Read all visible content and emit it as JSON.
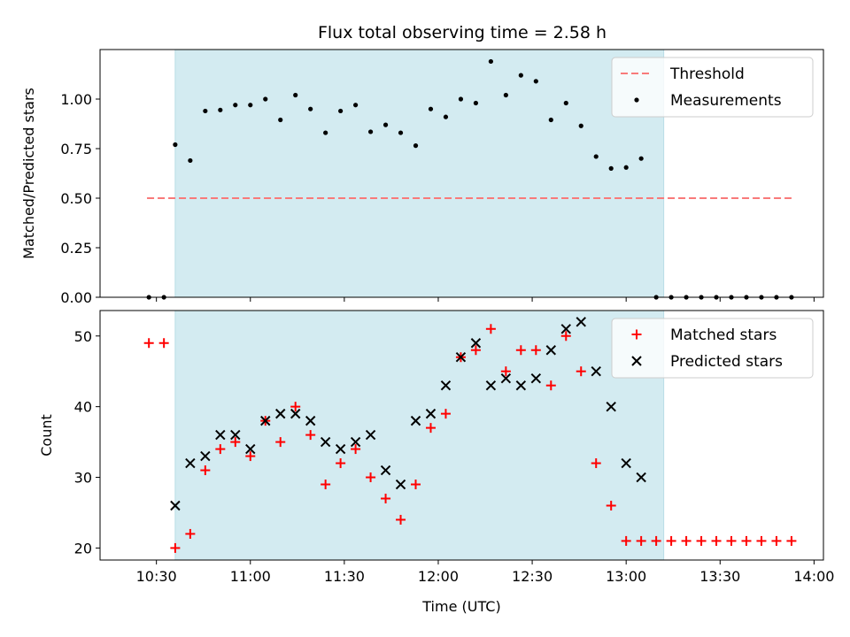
{
  "chart_data": [
    {
      "type": "scatter",
      "title": "Flux total observing time = 2.58 h",
      "ylabel": "Matched/Predicted stars",
      "ylim": [
        0,
        1.25
      ],
      "yticks": [
        "0.00",
        "0.25",
        "0.50",
        "0.75",
        "1.00"
      ],
      "yticks_values": [
        0,
        0.25,
        0.5,
        0.75,
        1.0
      ],
      "xlim": [
        10.2,
        14.05
      ],
      "shaded_region": [
        10.6,
        13.2
      ],
      "shade_color": "#d3ebf1",
      "legend_position": "top-right",
      "threshold": {
        "name": "Threshold",
        "value": 0.5,
        "x_range": [
          10.45,
          13.88
        ],
        "color": "#f87a7a"
      },
      "series": [
        {
          "name": "Measurements",
          "color": "#000000",
          "marker": "dot",
          "x": [
            10.46,
            10.54,
            10.6,
            10.68,
            10.76,
            10.84,
            10.92,
            11.0,
            11.08,
            11.16,
            11.24,
            11.32,
            11.4,
            11.48,
            11.56,
            11.64,
            11.72,
            11.8,
            11.88,
            11.96,
            12.04,
            12.12,
            12.2,
            12.28,
            12.36,
            12.44,
            12.52,
            12.6,
            12.68,
            12.76,
            12.84,
            12.92,
            13.0,
            13.08,
            13.16,
            13.24,
            13.32,
            13.4,
            13.48,
            13.56,
            13.64,
            13.72,
            13.8,
            13.88
          ],
          "y": [
            0,
            0,
            0.77,
            0.69,
            0.94,
            0.945,
            0.97,
            0.97,
            1.0,
            0.895,
            1.02,
            0.95,
            0.83,
            0.94,
            0.97,
            0.835,
            0.87,
            0.83,
            0.765,
            0.95,
            0.91,
            1.0,
            0.98,
            1.19,
            1.02,
            1.12,
            1.09,
            0.895,
            0.98,
            0.865,
            0.71,
            0.65,
            0.655,
            0.7,
            0,
            0,
            0,
            0,
            0,
            0,
            0,
            0,
            0,
            0
          ]
        }
      ]
    },
    {
      "type": "scatter",
      "xlabel": "Time (UTC)",
      "ylabel": "Count",
      "ylim": [
        18.3,
        53.6
      ],
      "yticks": [
        "20",
        "30",
        "40",
        "50"
      ],
      "yticks_values": [
        20,
        30,
        40,
        50
      ],
      "xlim": [
        10.2,
        14.05
      ],
      "xticks": [
        "10:30",
        "11:00",
        "11:30",
        "12:00",
        "12:30",
        "13:00",
        "13:30",
        "14:00"
      ],
      "xticks_values": [
        10.5,
        11.0,
        11.5,
        12.0,
        12.5,
        13.0,
        13.5,
        14.0
      ],
      "shaded_region": [
        10.6,
        13.2
      ],
      "shade_color": "#d3ebf1",
      "legend_position": "top-right",
      "series": [
        {
          "name": "Matched stars",
          "color": "#ff0000",
          "marker": "plus",
          "x": [
            10.46,
            10.54,
            10.6,
            10.68,
            10.76,
            10.84,
            10.92,
            11.0,
            11.08,
            11.16,
            11.24,
            11.32,
            11.4,
            11.48,
            11.56,
            11.64,
            11.72,
            11.8,
            11.88,
            11.96,
            12.04,
            12.12,
            12.2,
            12.28,
            12.36,
            12.44,
            12.52,
            12.6,
            12.68,
            12.76,
            12.84,
            12.92,
            13.0,
            13.08,
            13.16,
            13.24,
            13.32,
            13.4,
            13.48,
            13.56,
            13.64,
            13.72,
            13.8,
            13.88
          ],
          "y": [
            49,
            49,
            20,
            22,
            31,
            34,
            35,
            33,
            38,
            35,
            40,
            36,
            29,
            32,
            34,
            30,
            27,
            24,
            29,
            37,
            39,
            47,
            48,
            51,
            45,
            48,
            48,
            43,
            50,
            45,
            32,
            26,
            21,
            21,
            21,
            21,
            21,
            21,
            21,
            21,
            21,
            21,
            21,
            21
          ]
        },
        {
          "name": "Predicted stars",
          "color": "#000000",
          "marker": "x",
          "x": [
            10.6,
            10.68,
            10.76,
            10.84,
            10.92,
            11.0,
            11.08,
            11.16,
            11.24,
            11.32,
            11.4,
            11.48,
            11.56,
            11.64,
            11.72,
            11.8,
            11.88,
            11.96,
            12.04,
            12.12,
            12.2,
            12.28,
            12.36,
            12.44,
            12.52,
            12.6,
            12.68,
            12.76,
            12.84,
            12.92,
            13.0,
            13.08
          ],
          "y": [
            26,
            32,
            33,
            36,
            36,
            34,
            38,
            39,
            39,
            38,
            35,
            34,
            35,
            36,
            31,
            29,
            38,
            39,
            43,
            47,
            49,
            43,
            44,
            43,
            44,
            48,
            51,
            52,
            45,
            40,
            32,
            30
          ]
        }
      ]
    }
  ]
}
